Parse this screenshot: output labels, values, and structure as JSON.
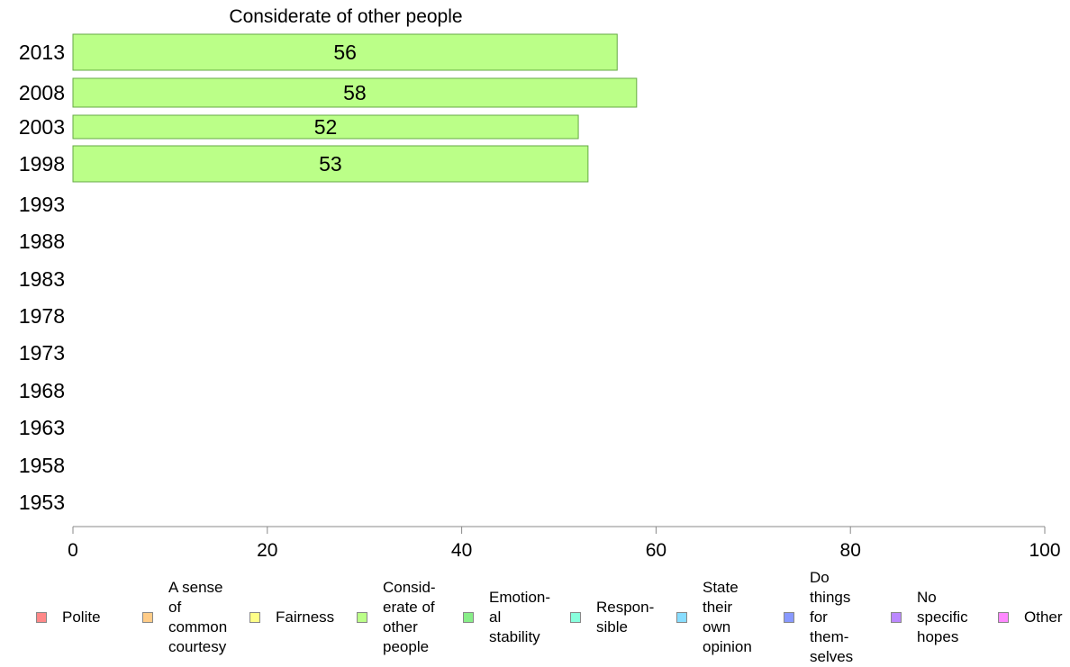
{
  "chart_data": {
    "type": "bar",
    "orientation": "horizontal",
    "title": "Considerate of other people",
    "categories": [
      "2013",
      "2008",
      "2003",
      "1998",
      "1993",
      "1988",
      "1983",
      "1978",
      "1973",
      "1968",
      "1963",
      "1958",
      "1953"
    ],
    "series": [
      {
        "name": "Consid-\nerate of\nother\npeople",
        "values": [
          56,
          58,
          52,
          53,
          null,
          null,
          null,
          null,
          null,
          null,
          null,
          null,
          null
        ]
      }
    ],
    "data_labels": [
      "56",
      "58",
      "52",
      "53"
    ],
    "xlim": [
      0,
      100
    ],
    "xticks": [
      "0",
      "20",
      "40",
      "60",
      "80",
      "100"
    ],
    "grid": false,
    "legend_position": "bottom",
    "bar_color": "#bbff88"
  },
  "legend": [
    {
      "label": "Polite",
      "color": "#ff8888"
    },
    {
      "label": "A sense\nof\ncommon\ncourtesy",
      "color": "#ffcc88"
    },
    {
      "label": "Fairness",
      "color": "#ffff88"
    },
    {
      "label": "Consid-\nerate of\nother\npeople",
      "color": "#bbff88"
    },
    {
      "label": "Emotion-\nal\nstability",
      "color": "#88ee88"
    },
    {
      "label": "Respon-\nsible",
      "color": "#88ffdd"
    },
    {
      "label": "State\ntheir\nown\nopinion",
      "color": "#88ddff"
    },
    {
      "label": "Do\nthings\nfor\nthem-\nselves",
      "color": "#8899ff"
    },
    {
      "label": "No\nspecific\nhopes",
      "color": "#bb88ff"
    },
    {
      "label": "Other",
      "color": "#ff88ff"
    }
  ]
}
